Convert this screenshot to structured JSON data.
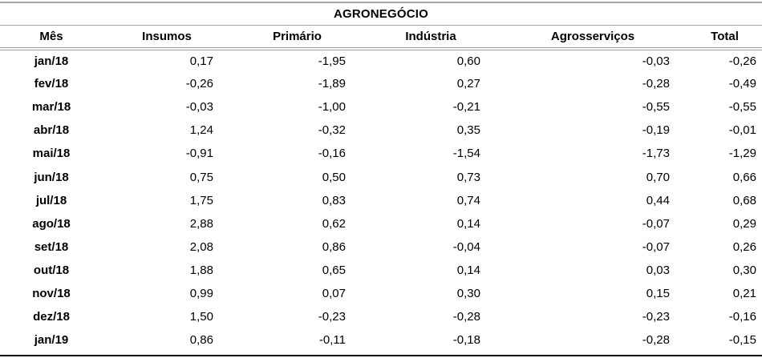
{
  "title": "AGRONEGÓCIO",
  "colors": {
    "background": "#ffffff",
    "text": "#000000",
    "rule_gray": "#a6a6a6",
    "rule_double_gray": "#9e9e9e",
    "rule_bottom_black": "#000000"
  },
  "table": {
    "columns": [
      "Mês",
      "Insumos",
      "Primário",
      "Indústria",
      "Agrosserviços",
      "Total"
    ],
    "rows": [
      {
        "month": "jan/18",
        "values": [
          "0,17",
          "-1,95",
          "0,60",
          "-0,03",
          "-0,26"
        ]
      },
      {
        "month": "fev/18",
        "values": [
          "-0,26",
          "-1,89",
          "0,27",
          "-0,28",
          "-0,49"
        ]
      },
      {
        "month": "mar/18",
        "values": [
          "-0,03",
          "-1,00",
          "-0,21",
          "-0,55",
          "-0,55"
        ]
      },
      {
        "month": "abr/18",
        "values": [
          "1,24",
          "-0,32",
          "0,35",
          "-0,19",
          "-0,01"
        ]
      },
      {
        "month": "mai/18",
        "values": [
          "-0,91",
          "-0,16",
          "-1,54",
          "-1,73",
          "-1,29"
        ]
      },
      {
        "month": "jun/18",
        "values": [
          "0,75",
          "0,50",
          "0,73",
          "0,70",
          "0,66"
        ]
      },
      {
        "month": "jul/18",
        "values": [
          "1,75",
          "0,83",
          "0,74",
          "0,44",
          "0,68"
        ]
      },
      {
        "month": "ago/18",
        "values": [
          "2,88",
          "0,62",
          "0,14",
          "-0,07",
          "0,29"
        ]
      },
      {
        "month": "set/18",
        "values": [
          "2,08",
          "0,86",
          "-0,04",
          "-0,07",
          "0,26"
        ]
      },
      {
        "month": "out/18",
        "values": [
          "1,88",
          "0,65",
          "0,14",
          "0,03",
          "0,30"
        ]
      },
      {
        "month": "nov/18",
        "values": [
          "0,99",
          "0,07",
          "0,30",
          "0,15",
          "0,21"
        ]
      },
      {
        "month": "dez/18",
        "values": [
          "1,50",
          "-0,23",
          "-0,28",
          "-0,23",
          "-0,16"
        ]
      },
      {
        "month": "jan/19",
        "values": [
          "0,86",
          "-0,11",
          "-0,18",
          "-0,28",
          "-0,15"
        ]
      }
    ]
  },
  "chart_data": {
    "type": "table",
    "title": "AGRONEGÓCIO",
    "categories": [
      "jan/18",
      "fev/18",
      "mar/18",
      "abr/18",
      "mai/18",
      "jun/18",
      "jul/18",
      "ago/18",
      "set/18",
      "out/18",
      "nov/18",
      "dez/18",
      "jan/19"
    ],
    "series": [
      {
        "name": "Insumos",
        "values": [
          0.17,
          -0.26,
          -0.03,
          1.24,
          -0.91,
          0.75,
          1.75,
          2.88,
          2.08,
          1.88,
          0.99,
          1.5,
          0.86
        ]
      },
      {
        "name": "Primário",
        "values": [
          -1.95,
          -1.89,
          -1.0,
          -0.32,
          -0.16,
          0.5,
          0.83,
          0.62,
          0.86,
          0.65,
          0.07,
          -0.23,
          -0.11
        ]
      },
      {
        "name": "Indústria",
        "values": [
          0.6,
          0.27,
          -0.21,
          0.35,
          -1.54,
          0.73,
          0.74,
          0.14,
          -0.04,
          0.14,
          0.3,
          -0.28,
          -0.18
        ]
      },
      {
        "name": "Agrosserviços",
        "values": [
          -0.03,
          -0.28,
          -0.55,
          -0.19,
          -1.73,
          0.7,
          0.44,
          -0.07,
          -0.07,
          0.03,
          0.15,
          -0.23,
          -0.28
        ]
      },
      {
        "name": "Total",
        "values": [
          -0.26,
          -0.49,
          -0.55,
          -0.01,
          -1.29,
          0.66,
          0.68,
          0.29,
          0.26,
          0.3,
          0.21,
          -0.16,
          -0.15
        ]
      }
    ],
    "decimal_separator": ",",
    "layout_hints": {
      "month_column_align": "center",
      "value_columns_align": "right",
      "header_align": "center",
      "rules": [
        "thin gray top rule",
        "thin gray rule under title",
        "double gray rule under headers",
        "black rule at bottom"
      ]
    }
  }
}
